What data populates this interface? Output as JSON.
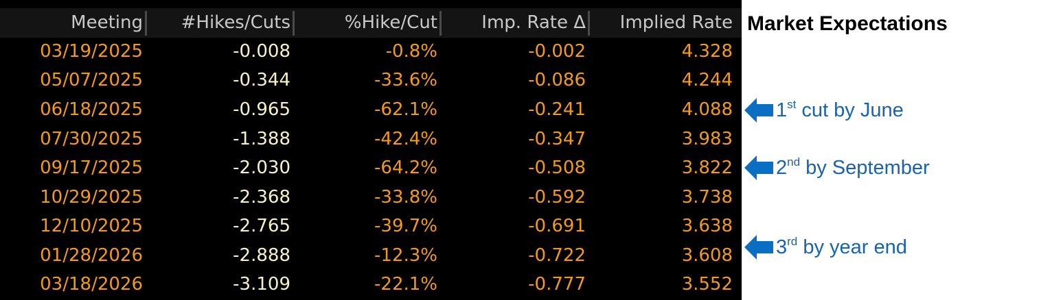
{
  "table": {
    "headers": {
      "meeting": "Meeting",
      "hikes_cuts": "#Hikes/Cuts",
      "pct_hike_cut": "%Hike/Cut",
      "imp_rate_delta": "Imp. Rate Δ",
      "implied_rate": "Implied Rate"
    },
    "rows": [
      {
        "meeting": "03/19/2025",
        "hikes_cuts": "-0.008",
        "pct_hike_cut": "-0.8%",
        "imp_rate_delta": "-0.002",
        "implied_rate": "4.328"
      },
      {
        "meeting": "05/07/2025",
        "hikes_cuts": "-0.344",
        "pct_hike_cut": "-33.6%",
        "imp_rate_delta": "-0.086",
        "implied_rate": "4.244"
      },
      {
        "meeting": "06/18/2025",
        "hikes_cuts": "-0.965",
        "pct_hike_cut": "-62.1%",
        "imp_rate_delta": "-0.241",
        "implied_rate": "4.088"
      },
      {
        "meeting": "07/30/2025",
        "hikes_cuts": "-1.388",
        "pct_hike_cut": "-42.4%",
        "imp_rate_delta": "-0.347",
        "implied_rate": "3.983"
      },
      {
        "meeting": "09/17/2025",
        "hikes_cuts": "-2.030",
        "pct_hike_cut": "-64.2%",
        "imp_rate_delta": "-0.508",
        "implied_rate": "3.822"
      },
      {
        "meeting": "10/29/2025",
        "hikes_cuts": "-2.368",
        "pct_hike_cut": "-33.8%",
        "imp_rate_delta": "-0.592",
        "implied_rate": "3.738"
      },
      {
        "meeting": "12/10/2025",
        "hikes_cuts": "-2.765",
        "pct_hike_cut": "-39.7%",
        "imp_rate_delta": "-0.691",
        "implied_rate": "3.638"
      },
      {
        "meeting": "01/28/2026",
        "hikes_cuts": "-2.888",
        "pct_hike_cut": "-12.3%",
        "imp_rate_delta": "-0.722",
        "implied_rate": "3.608"
      },
      {
        "meeting": "03/18/2026",
        "hikes_cuts": "-3.109",
        "pct_hike_cut": "-22.1%",
        "imp_rate_delta": "-0.777",
        "implied_rate": "3.552"
      }
    ]
  },
  "panel": {
    "title": "Market Expectations"
  },
  "annotations": [
    {
      "ordinal_num": "1",
      "ordinal_suffix": "st",
      "text": " cut by June"
    },
    {
      "ordinal_num": "2",
      "ordinal_suffix": "nd",
      "text": " by September"
    },
    {
      "ordinal_num": "3",
      "ordinal_suffix": "rd",
      "text": " by year end"
    }
  ],
  "colors": {
    "background_terminal": "#000000",
    "header_text": "#c9c9c9",
    "orange_value": "#f39a1b",
    "cream_value": "#f7f2c8",
    "annotation_blue": "#1663b4",
    "arrow_blue": "#0a6fc2"
  },
  "icons": {
    "annotation_arrow": "left-arrow-icon"
  }
}
